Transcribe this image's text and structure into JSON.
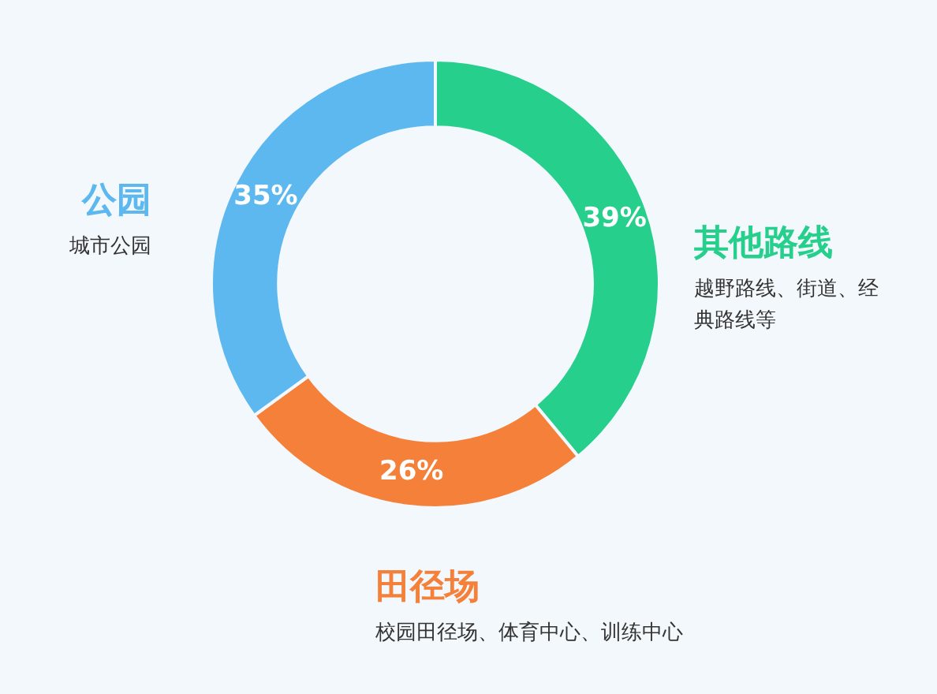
{
  "chart_data": {
    "type": "donut",
    "categories": [
      "其他路线",
      "田径场",
      "公园"
    ],
    "values": [
      39,
      26,
      35
    ],
    "colors": [
      "#27cf8c",
      "#f5803a",
      "#5cb8ef"
    ],
    "value_labels": [
      "39%",
      "26%",
      "35%"
    ],
    "annotations": [
      "越野路线、街道、经典路线等",
      "校园田径场、体育中心、训练中心",
      "城市公园"
    ],
    "legend": false
  }
}
